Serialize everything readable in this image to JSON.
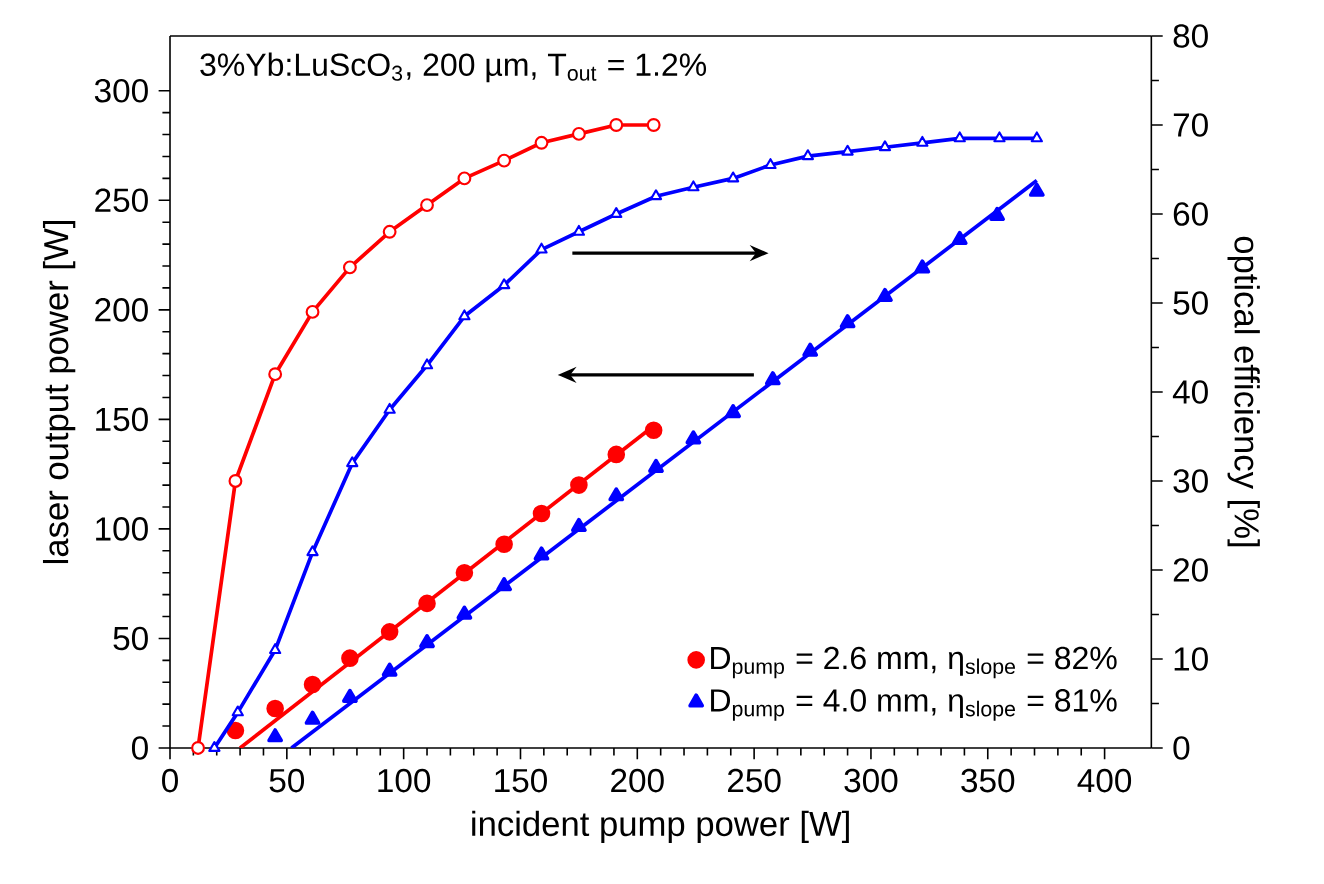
{
  "chart_data": {
    "type": "line",
    "title": "3%Yb:LuScO$_{3}$, 200 µm, T$_{out}$ = 1.2%",
    "xlabel": "incident pump power [W]",
    "ylabel": "laser output power [W]",
    "y2label": "optical efficiency [%]",
    "xlim": [
      0,
      420
    ],
    "ylim": [
      0,
      325
    ],
    "y2lim": [
      0,
      80
    ],
    "xticks": [
      0,
      50,
      100,
      150,
      200,
      250,
      300,
      350,
      400
    ],
    "yticks": [
      0,
      50,
      100,
      150,
      200,
      250,
      300
    ],
    "y2ticks": [
      0,
      10,
      20,
      30,
      40,
      50,
      60,
      70,
      80
    ],
    "legend": "bottom right",
    "series": [
      {
        "name": "D$_{pump}$ = 2.6 mm, η$_{slope}$ = 82%",
        "type": "scatter",
        "marker": "circle",
        "color": "#ff0000",
        "x": [
          28,
          45,
          61,
          77,
          94,
          110,
          126,
          143,
          159,
          175,
          191,
          207
        ],
        "values": [
          8,
          18,
          29,
          41,
          53,
          66,
          80,
          93,
          107,
          120,
          134,
          145
        ]
      },
      {
        "name": "D$_{pump}$ = 4.0 mm, η$_{slope}$ = 81%",
        "type": "scatter",
        "marker": "triangle",
        "color": "#0000ff",
        "x": [
          45,
          61,
          77,
          94,
          110,
          126,
          143,
          159,
          175,
          191,
          208,
          224,
          241,
          258,
          274,
          290,
          306,
          322,
          338,
          354,
          371
        ],
        "values": [
          5,
          13,
          23,
          35,
          48,
          61,
          74,
          88,
          101,
          115,
          128,
          141,
          153,
          168,
          181,
          194,
          206,
          219,
          232,
          243,
          254
        ]
      },
      {
        "marker": "none",
        "color": "#ff0000",
        "x": [
          30,
          207
        ],
        "values": [
          0,
          147
        ]
      },
      {
        "marker": "none",
        "color": "#0000ff",
        "x": [
          52,
          371
        ],
        "values": [
          0,
          259
        ]
      },
      {
        "marker": "circle",
        "axis": "y2",
        "color": "#ff0000",
        "x": [
          12,
          28,
          45,
          61,
          77,
          94,
          110,
          126,
          143,
          159,
          175,
          191,
          207
        ],
        "values": [
          0,
          30,
          42,
          49,
          54,
          58,
          61,
          64,
          66,
          68,
          69,
          70,
          70
        ]
      },
      {
        "marker": "triangle",
        "axis": "y2",
        "color": "#0000ff",
        "x": [
          19,
          29,
          45,
          61,
          78,
          94,
          110,
          126,
          143,
          159,
          175,
          191,
          208,
          224,
          241,
          257,
          273,
          290,
          306,
          322,
          338,
          355,
          371
        ],
        "values": [
          0,
          4,
          11,
          22,
          32,
          38,
          43,
          48.5,
          52,
          56,
          58,
          60,
          62,
          63,
          64,
          65.5,
          66.5,
          67,
          67.5,
          68,
          68.5,
          68.5,
          68.5
        ]
      }
    ]
  }
}
